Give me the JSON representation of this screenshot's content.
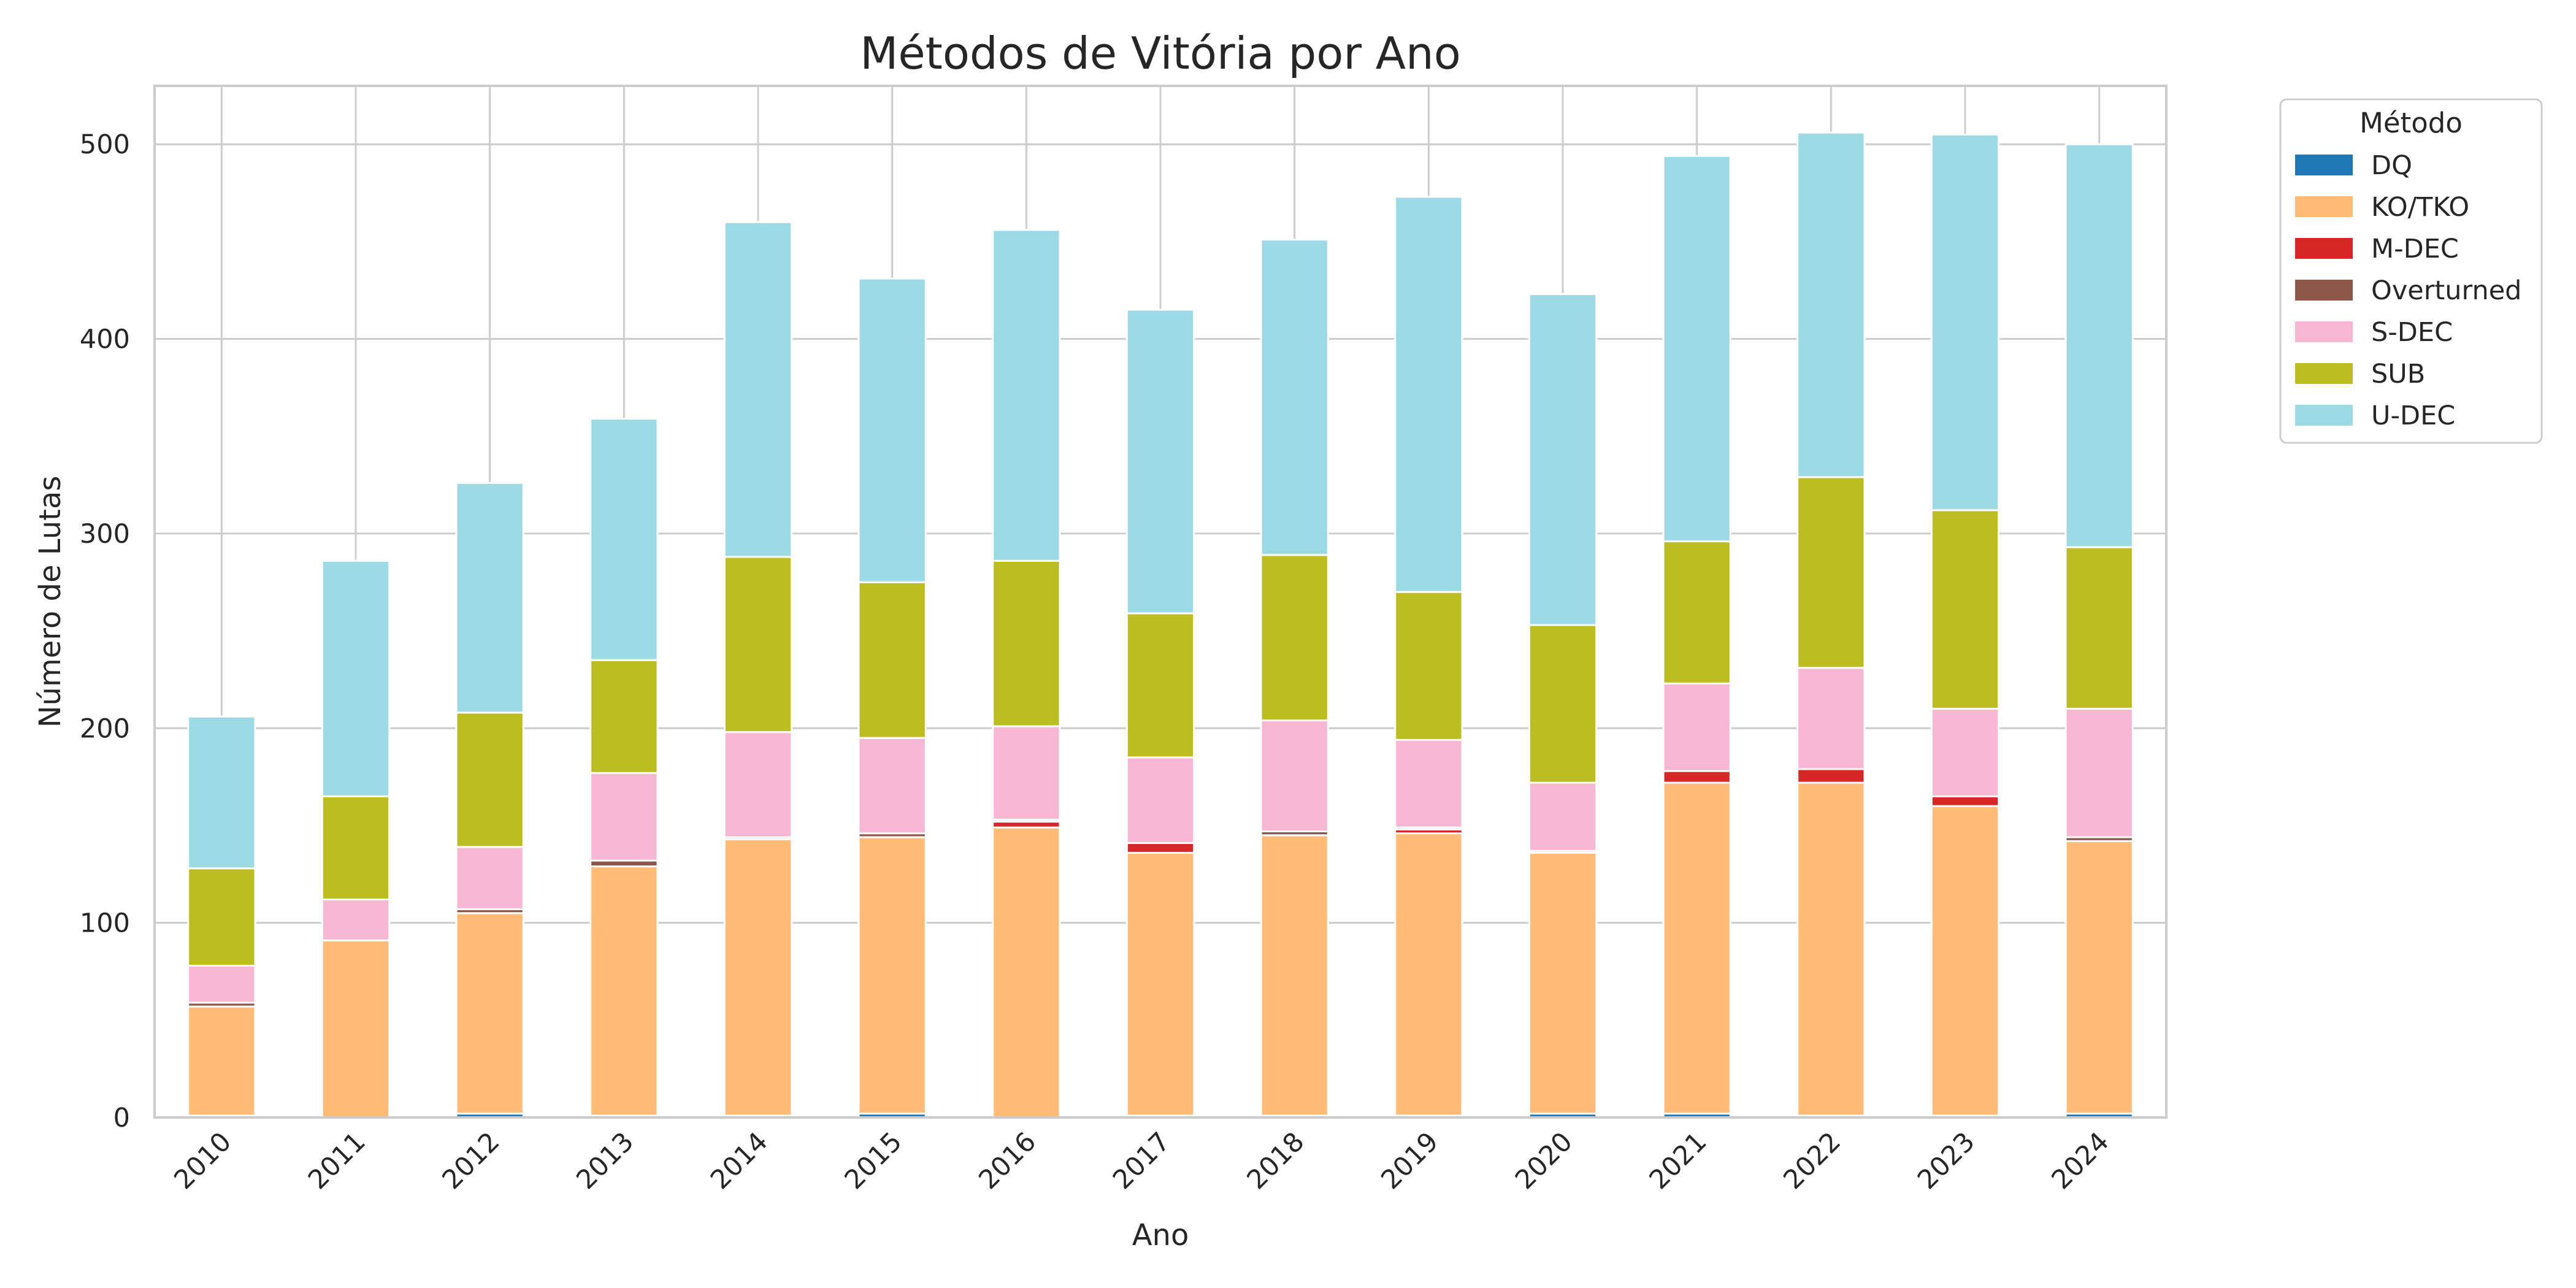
{
  "chart_data": {
    "type": "bar",
    "stacked": true,
    "title": "Métodos de Vitória por Ano",
    "xlabel": "Ano",
    "ylabel": "Número de Lutas",
    "ylim": [
      0,
      530
    ],
    "yticks": [
      0,
      100,
      200,
      300,
      400,
      500
    ],
    "grid": true,
    "legend": {
      "title": "Método",
      "placement": "outside-top-right"
    },
    "categories": [
      "2010",
      "2011",
      "2012",
      "2013",
      "2014",
      "2015",
      "2016",
      "2017",
      "2018",
      "2019",
      "2020",
      "2021",
      "2022",
      "2023",
      "2024"
    ],
    "series": [
      {
        "name": "DQ",
        "color": "#1f77b4",
        "values": [
          1,
          0,
          2,
          1,
          1,
          2,
          0,
          1,
          1,
          1,
          2,
          2,
          1,
          1,
          2
        ]
      },
      {
        "name": "KO/TKO",
        "color": "#ffbb78",
        "values": [
          56,
          91,
          103,
          128,
          142,
          142,
          149,
          135,
          144,
          145,
          134,
          170,
          171,
          159,
          140
        ]
      },
      {
        "name": "M-DEC",
        "color": "#d62728",
        "values": [
          0,
          0,
          0,
          0,
          0,
          0,
          3,
          5,
          0,
          2,
          0,
          6,
          7,
          5,
          0
        ]
      },
      {
        "name": "Overturned",
        "color": "#8c564b",
        "values": [
          2,
          0,
          2,
          3,
          1,
          2,
          1,
          0,
          2,
          1,
          1,
          0,
          0,
          0,
          2
        ]
      },
      {
        "name": "S-DEC",
        "color": "#f7b6d2",
        "values": [
          19,
          21,
          32,
          45,
          54,
          49,
          48,
          44,
          57,
          45,
          35,
          45,
          52,
          45,
          66
        ]
      },
      {
        "name": "SUB",
        "color": "#bcbd22",
        "values": [
          50,
          53,
          69,
          58,
          90,
          80,
          85,
          74,
          85,
          76,
          81,
          73,
          98,
          102,
          83
        ]
      },
      {
        "name": "U-DEC",
        "color": "#9edae5",
        "values": [
          78,
          121,
          118,
          124,
          172,
          156,
          170,
          156,
          162,
          203,
          170,
          198,
          177,
          193,
          207
        ]
      }
    ]
  }
}
